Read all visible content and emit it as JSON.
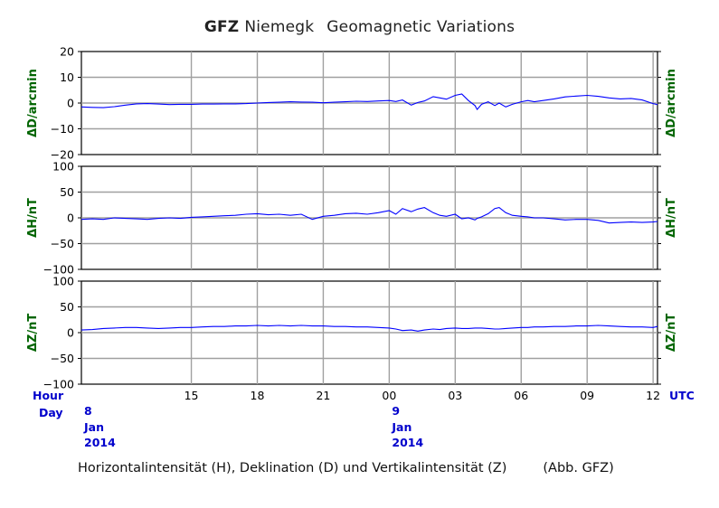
{
  "title": {
    "brand": "GFZ",
    "station": "Niemegk",
    "subtitle": "Geomagnetic Variations"
  },
  "caption": {
    "text": "Horizontalintensität (H), Deklination (D) und Vertikalintensität (Z)",
    "credit": "(Abb. GFZ)"
  },
  "colors": {
    "trace": "#0000ff",
    "axis_label": "#006400",
    "time_label": "#0000cc",
    "grid": "#a0a0a0"
  },
  "chart_data": [
    {
      "type": "line",
      "ylabel": "ΔD/arcmin",
      "ylim": [
        -20,
        20
      ],
      "yticks": [
        "20",
        "10",
        "0",
        "−10",
        "−20"
      ],
      "xlim": [
        10,
        36.2
      ],
      "grid": true,
      "x": [
        10,
        10.5,
        11,
        11.5,
        12,
        12.5,
        13,
        13.5,
        14,
        14.5,
        15,
        15.5,
        16,
        16.5,
        17,
        17.5,
        18,
        18.5,
        19,
        19.5,
        20,
        20.5,
        21,
        21.5,
        22,
        22.5,
        23,
        23.5,
        24,
        24.3,
        24.6,
        25,
        25.3,
        25.6,
        26,
        26.3,
        26.6,
        27,
        27.3,
        27.6,
        27.9,
        28,
        28.2,
        28.5,
        28.8,
        29,
        29.3,
        29.6,
        30,
        30.3,
        30.6,
        31,
        31.5,
        32,
        32.5,
        33,
        33.5,
        34,
        34.5,
        35,
        35.5,
        36,
        36.2
      ],
      "series": [
        {
          "values": [
            -1.5,
            -1.7,
            -1.8,
            -1.4,
            -0.8,
            -0.3,
            -0.2,
            -0.4,
            -0.6,
            -0.5,
            -0.5,
            -0.4,
            -0.4,
            -0.3,
            -0.3,
            -0.2,
            0,
            0.2,
            0.3,
            0.5,
            0.4,
            0.3,
            0.1,
            0.3,
            0.5,
            0.7,
            0.6,
            0.8,
            1.0,
            0.6,
            1.2,
            -0.8,
            0.2,
            0.8,
            2.5,
            2.0,
            1.5,
            3.0,
            3.5,
            1.0,
            -1.0,
            -2.5,
            -0.5,
            0.5,
            -1.0,
            0,
            -1.5,
            -0.5,
            0.5,
            1.0,
            0.5,
            1.0,
            1.6,
            2.4,
            2.7,
            3.0,
            2.6,
            2.0,
            1.6,
            1.8,
            1.2,
            -0.2,
            -0.6
          ]
        }
      ]
    },
    {
      "type": "line",
      "ylabel": "ΔH/nT",
      "ylim": [
        -100,
        100
      ],
      "yticks": [
        "100",
        "50",
        "0",
        "−50",
        "−100"
      ],
      "xlim": [
        10,
        36.2
      ],
      "grid": true,
      "x": [
        10,
        10.5,
        11,
        11.5,
        12,
        12.5,
        13,
        13.5,
        14,
        14.5,
        15,
        15.5,
        16,
        16.5,
        17,
        17.5,
        18,
        18.5,
        19,
        19.5,
        20,
        20.5,
        21,
        21.5,
        22,
        22.5,
        23,
        23.5,
        24,
        24.3,
        24.6,
        25,
        25.3,
        25.6,
        26,
        26.3,
        26.6,
        27,
        27.3,
        27.6,
        27.9,
        28,
        28.2,
        28.5,
        28.8,
        29,
        29.3,
        29.6,
        30,
        30.3,
        30.6,
        31,
        31.5,
        32,
        32.5,
        33,
        33.5,
        34,
        34.5,
        35,
        35.5,
        36,
        36.2
      ],
      "series": [
        {
          "values": [
            -3,
            -2,
            -3,
            0,
            -1,
            -2,
            -3,
            -1,
            0,
            -1,
            1,
            2,
            3,
            4,
            5,
            7,
            8,
            6,
            7,
            5,
            7,
            -3,
            3,
            5,
            8,
            9,
            7,
            10,
            14,
            7,
            18,
            12,
            17,
            20,
            10,
            5,
            3,
            7,
            -2,
            0,
            -4,
            -1,
            2,
            8,
            18,
            20,
            10,
            5,
            3,
            2,
            0,
            0,
            -2,
            -4,
            -3,
            -3,
            -5,
            -10,
            -9,
            -8,
            -9,
            -8,
            -7
          ]
        }
      ]
    },
    {
      "type": "line",
      "ylabel": "ΔZ/nT",
      "ylim": [
        -100,
        100
      ],
      "yticks": [
        "100",
        "50",
        "0",
        "−50",
        "−100"
      ],
      "xlim": [
        10,
        36.2
      ],
      "grid": true,
      "x": [
        10,
        10.5,
        11,
        11.5,
        12,
        12.5,
        13,
        13.5,
        14,
        14.5,
        15,
        15.5,
        16,
        16.5,
        17,
        17.5,
        18,
        18.5,
        19,
        19.5,
        20,
        20.5,
        21,
        21.5,
        22,
        22.5,
        23,
        23.5,
        24,
        24.3,
        24.6,
        25,
        25.3,
        25.6,
        26,
        26.3,
        26.6,
        27,
        27.3,
        27.6,
        27.9,
        28,
        28.2,
        28.5,
        28.8,
        29,
        29.3,
        29.6,
        30,
        30.3,
        30.6,
        31,
        31.5,
        32,
        32.5,
        33,
        33.5,
        34,
        34.5,
        35,
        35.5,
        36,
        36.2
      ],
      "series": [
        {
          "values": [
            5,
            6,
            8,
            9,
            10,
            10,
            9,
            8,
            9,
            10,
            10,
            11,
            12,
            12,
            13,
            13,
            14,
            13,
            14,
            13,
            14,
            13,
            13,
            12,
            12,
            11,
            11,
            10,
            9,
            7,
            4,
            5,
            3,
            5,
            7,
            6,
            8,
            9,
            8,
            8,
            9,
            9,
            9,
            8,
            7,
            7,
            8,
            9,
            10,
            10,
            11,
            11,
            12,
            12,
            13,
            13,
            14,
            13,
            12,
            11,
            11,
            10,
            12
          ]
        }
      ]
    }
  ],
  "time_axis": {
    "row1_label": "Hour",
    "row2_label": "Day",
    "units": "UTC",
    "hours": [
      {
        "x": 15,
        "label": "15"
      },
      {
        "x": 18,
        "label": "18"
      },
      {
        "x": 21,
        "label": "21"
      },
      {
        "x": 24,
        "label": "00"
      },
      {
        "x": 27,
        "label": "03"
      },
      {
        "x": 30,
        "label": "06"
      },
      {
        "x": 33,
        "label": "09"
      },
      {
        "x": 36,
        "label": "12"
      }
    ],
    "days": [
      {
        "x": 10,
        "day": "8",
        "month": "Jan",
        "year": "2014"
      },
      {
        "x": 24,
        "day": "9",
        "month": "Jan",
        "year": "2014"
      }
    ]
  }
}
